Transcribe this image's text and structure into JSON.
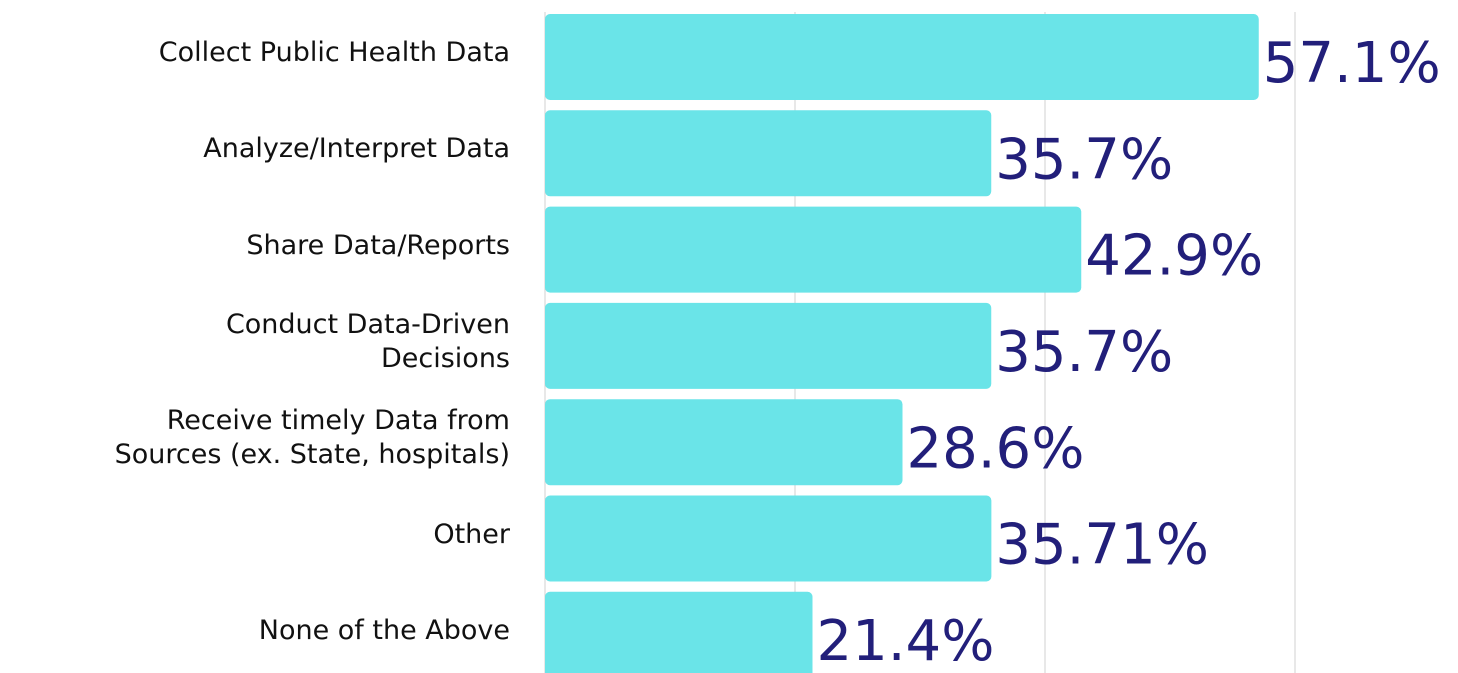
{
  "chart_data": {
    "type": "bar",
    "orientation": "horizontal",
    "categories": [
      "Collect Public Health Data",
      "Analyze/Interpret Data",
      "Share Data/Reports",
      "Conduct Data-Driven\nDecisions",
      "Receive  timely Data from\nSources (ex. State, hospitals)",
      "Other",
      "None of the Above"
    ],
    "values": [
      57.1,
      35.7,
      42.9,
      35.7,
      28.6,
      35.71,
      21.4
    ],
    "value_labels": [
      "57.1%",
      "35.7%",
      "42.9%",
      "35.7%",
      "28.6%",
      "35.71%",
      "21.4%"
    ],
    "color": "#6ae4e8",
    "label_color": "#221f7a",
    "xlim": [
      0,
      60
    ],
    "xticks": [
      0,
      20,
      40,
      60
    ],
    "grid": true
  }
}
